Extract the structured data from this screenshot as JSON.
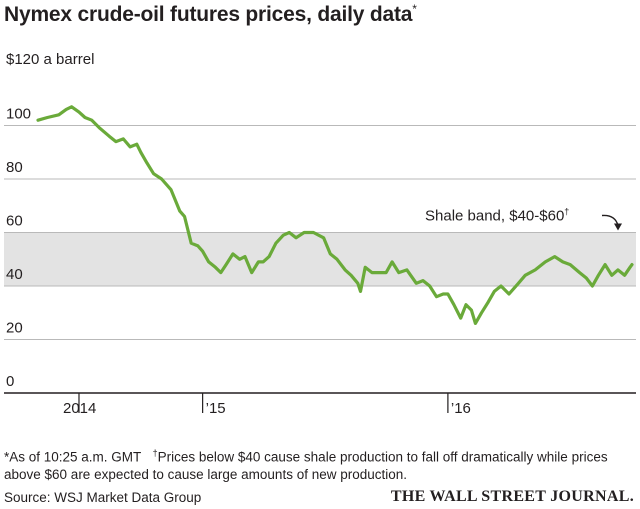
{
  "header": {
    "title": "Nymex crude-oil futures prices, daily data",
    "title_mark": "*"
  },
  "footer": {
    "note_asterisk": "*As of 10:25 a.m. GMT",
    "note_dagger_mark": "†",
    "note_dagger": "Prices below $40 cause shale production to fall off dramatically while prices above $60 are expected to cause large amounts of new production.",
    "source": "Source: WSJ Market Data Group",
    "masthead": "THE WALL STREET JOURNAL."
  },
  "chart_data": {
    "type": "line",
    "ylim": [
      0,
      120
    ],
    "y_unit_label": "$120 a barrel",
    "y_ticks": [
      {
        "value": 100,
        "label": "100"
      },
      {
        "value": 80,
        "label": "80"
      },
      {
        "value": 60,
        "label": "60"
      },
      {
        "value": 40,
        "label": "40"
      },
      {
        "value": 20,
        "label": "20"
      },
      {
        "value": 0,
        "label": "0"
      }
    ],
    "x_range": [
      "2014-05",
      "2016-10"
    ],
    "x_ticks": [
      {
        "date": "2014-07",
        "label": "2014"
      },
      {
        "date": "2015-01",
        "label": "’15"
      },
      {
        "date": "2016-01",
        "label": "’16"
      }
    ],
    "band": {
      "from": 40,
      "to": 60,
      "label": "Shale band, $40-$60",
      "mark": "†"
    },
    "series": [
      {
        "color": "#6aaa3a",
        "points": [
          [
            "2014-05-01",
            102
          ],
          [
            "2014-05-15",
            103
          ],
          [
            "2014-06-01",
            104
          ],
          [
            "2014-06-12",
            106
          ],
          [
            "2014-06-20",
            107
          ],
          [
            "2014-07-01",
            105
          ],
          [
            "2014-07-10",
            103
          ],
          [
            "2014-07-20",
            102
          ],
          [
            "2014-08-01",
            99
          ],
          [
            "2014-08-15",
            96
          ],
          [
            "2014-08-25",
            94
          ],
          [
            "2014-09-05",
            95
          ],
          [
            "2014-09-15",
            92
          ],
          [
            "2014-09-25",
            93
          ],
          [
            "2014-10-01",
            90
          ],
          [
            "2014-10-10",
            86
          ],
          [
            "2014-10-20",
            82
          ],
          [
            "2014-11-01",
            80
          ],
          [
            "2014-11-15",
            76
          ],
          [
            "2014-11-28",
            68
          ],
          [
            "2014-12-05",
            66
          ],
          [
            "2014-12-15",
            56
          ],
          [
            "2014-12-25",
            55
          ],
          [
            "2015-01-01",
            53
          ],
          [
            "2015-01-10",
            49
          ],
          [
            "2015-01-20",
            47
          ],
          [
            "2015-01-28",
            45
          ],
          [
            "2015-02-05",
            48
          ],
          [
            "2015-02-15",
            52
          ],
          [
            "2015-02-25",
            50
          ],
          [
            "2015-03-05",
            51
          ],
          [
            "2015-03-15",
            45
          ],
          [
            "2015-03-25",
            49
          ],
          [
            "2015-04-01",
            49
          ],
          [
            "2015-04-10",
            51
          ],
          [
            "2015-04-20",
            56
          ],
          [
            "2015-05-01",
            59
          ],
          [
            "2015-05-10",
            60
          ],
          [
            "2015-05-20",
            58
          ],
          [
            "2015-06-01",
            60
          ],
          [
            "2015-06-15",
            60
          ],
          [
            "2015-06-30",
            58
          ],
          [
            "2015-07-10",
            52
          ],
          [
            "2015-07-20",
            50
          ],
          [
            "2015-08-01",
            46
          ],
          [
            "2015-08-10",
            44
          ],
          [
            "2015-08-20",
            41
          ],
          [
            "2015-08-24",
            38
          ],
          [
            "2015-08-31",
            47
          ],
          [
            "2015-09-10",
            45
          ],
          [
            "2015-09-20",
            45
          ],
          [
            "2015-10-01",
            45
          ],
          [
            "2015-10-10",
            49
          ],
          [
            "2015-10-20",
            45
          ],
          [
            "2015-11-01",
            46
          ],
          [
            "2015-11-15",
            41
          ],
          [
            "2015-11-25",
            42
          ],
          [
            "2015-12-05",
            40
          ],
          [
            "2015-12-15",
            36
          ],
          [
            "2015-12-25",
            37
          ],
          [
            "2016-01-01",
            37
          ],
          [
            "2016-01-10",
            33
          ],
          [
            "2016-01-20",
            28
          ],
          [
            "2016-01-28",
            33
          ],
          [
            "2016-02-05",
            31
          ],
          [
            "2016-02-11",
            26
          ],
          [
            "2016-02-20",
            30
          ],
          [
            "2016-03-01",
            34
          ],
          [
            "2016-03-10",
            38
          ],
          [
            "2016-03-20",
            40
          ],
          [
            "2016-04-01",
            37
          ],
          [
            "2016-04-15",
            41
          ],
          [
            "2016-04-25",
            44
          ],
          [
            "2016-05-10",
            46
          ],
          [
            "2016-05-25",
            49
          ],
          [
            "2016-06-08",
            51
          ],
          [
            "2016-06-20",
            49
          ],
          [
            "2016-07-01",
            48
          ],
          [
            "2016-07-15",
            45
          ],
          [
            "2016-07-25",
            43
          ],
          [
            "2016-08-03",
            40
          ],
          [
            "2016-08-12",
            44
          ],
          [
            "2016-08-22",
            48
          ],
          [
            "2016-09-01",
            44
          ],
          [
            "2016-09-10",
            46
          ],
          [
            "2016-09-20",
            44
          ],
          [
            "2016-09-28",
            47
          ],
          [
            "2016-10-01",
            48
          ]
        ]
      }
    ]
  }
}
